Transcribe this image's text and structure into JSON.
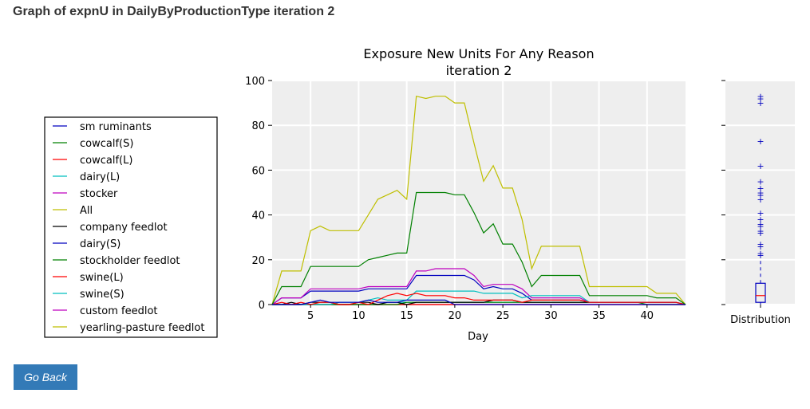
{
  "page": {
    "title": "Graph of expnU in DailyByProductionType iteration 2",
    "go_back_label": "Go Back"
  },
  "chart_data": {
    "type": "line",
    "title": "Exposure New Units For Any Reason",
    "subtitle": "iteration 2",
    "xlabel": "Day",
    "ylabel": "",
    "xlim": [
      1,
      44
    ],
    "ylim": [
      0,
      100
    ],
    "xticks": [
      5,
      10,
      15,
      20,
      25,
      30,
      35,
      40
    ],
    "yticks": [
      0,
      20,
      40,
      60,
      80,
      100
    ],
    "grid": true,
    "legend_position": "left",
    "x": [
      1,
      2,
      3,
      4,
      5,
      6,
      7,
      8,
      9,
      10,
      11,
      12,
      13,
      14,
      15,
      16,
      17,
      18,
      19,
      20,
      21,
      22,
      23,
      24,
      25,
      26,
      27,
      28,
      29,
      30,
      31,
      32,
      33,
      34,
      35,
      36,
      37,
      38,
      39,
      40,
      41,
      42,
      43,
      44
    ],
    "series": [
      {
        "name": "sm ruminants",
        "color": "#0000bf",
        "values": [
          0,
          0,
          0,
          0,
          1,
          2,
          1,
          1,
          1,
          1,
          2,
          1,
          1,
          1,
          2,
          2,
          2,
          2,
          2,
          0,
          0,
          0,
          0,
          0,
          0,
          0,
          0,
          0,
          0,
          0,
          0,
          0,
          0,
          0,
          0,
          0,
          0,
          0,
          0,
          0,
          0,
          0,
          0,
          0
        ]
      },
      {
        "name": "cowcalf(S)",
        "color": "#008000",
        "values": [
          0,
          8,
          8,
          8,
          17,
          17,
          17,
          17,
          17,
          17,
          20,
          21,
          22,
          23,
          23,
          50,
          50,
          50,
          50,
          49,
          49,
          41,
          32,
          36,
          27,
          27,
          19,
          8,
          13,
          13,
          13,
          13,
          13,
          4,
          4,
          4,
          4,
          4,
          4,
          4,
          3,
          3,
          3,
          0
        ]
      },
      {
        "name": "cowcalf(L)",
        "color": "#ff0000",
        "values": [
          0,
          1,
          0,
          1,
          0,
          1,
          1,
          0,
          0,
          1,
          0,
          2,
          4,
          5,
          4,
          5,
          4,
          4,
          4,
          3,
          3,
          2,
          2,
          2,
          2,
          2,
          1,
          2,
          2,
          2,
          2,
          2,
          2,
          1,
          1,
          1,
          1,
          1,
          1,
          1,
          1,
          1,
          1,
          0
        ]
      },
      {
        "name": "dairy(L)",
        "color": "#00bfbf",
        "values": [
          0,
          0,
          0,
          0,
          0,
          0,
          0,
          1,
          1,
          1,
          2,
          3,
          2,
          2,
          2,
          6,
          6,
          6,
          6,
          6,
          6,
          6,
          5,
          5,
          5,
          5,
          3,
          4,
          4,
          4,
          4,
          4,
          4,
          1,
          1,
          1,
          1,
          1,
          1,
          1,
          1,
          1,
          1,
          0
        ]
      },
      {
        "name": "stocker",
        "color": "#bf00bf",
        "values": [
          0,
          3,
          3,
          3,
          7,
          7,
          7,
          7,
          7,
          7,
          8,
          8,
          8,
          8,
          8,
          15,
          15,
          16,
          16,
          16,
          16,
          13,
          8,
          9,
          9,
          9,
          7,
          3,
          3,
          3,
          3,
          3,
          3,
          1,
          1,
          1,
          1,
          1,
          1,
          1,
          1,
          1,
          1,
          0
        ]
      },
      {
        "name": "All",
        "color": "#bfbf00",
        "values": [
          0,
          15,
          15,
          15,
          33,
          35,
          33,
          33,
          33,
          33,
          40,
          47,
          49,
          51,
          47,
          93,
          92,
          93,
          93,
          90,
          90,
          72,
          55,
          62,
          52,
          52,
          38,
          16,
          26,
          26,
          26,
          26,
          26,
          8,
          8,
          8,
          8,
          8,
          8,
          8,
          5,
          5,
          5,
          0
        ]
      },
      {
        "name": "company feedlot",
        "color": "#000000",
        "values": [
          0,
          0,
          1,
          0,
          1,
          1,
          1,
          0,
          0,
          1,
          1,
          0,
          1,
          1,
          0,
          1,
          1,
          1,
          1,
          1,
          1,
          1,
          1,
          2,
          2,
          2,
          1,
          1,
          1,
          1,
          1,
          1,
          1,
          1,
          1,
          1,
          1,
          1,
          1,
          1,
          1,
          1,
          1,
          0
        ]
      },
      {
        "name": "dairy(S)",
        "color": "#0000bf",
        "values": [
          0,
          3,
          3,
          3,
          6,
          6,
          6,
          6,
          6,
          6,
          7,
          7,
          7,
          7,
          7,
          13,
          13,
          13,
          13,
          13,
          13,
          11,
          7,
          8,
          7,
          7,
          5,
          2,
          2,
          2,
          2,
          2,
          2,
          1,
          1,
          1,
          1,
          1,
          1,
          1,
          1,
          1,
          1,
          0
        ]
      },
      {
        "name": "stockholder feedlot",
        "color": "#008000",
        "values": [
          0,
          0,
          0,
          0,
          0,
          0,
          0,
          0,
          0,
          0,
          0,
          0,
          0,
          0,
          1,
          1,
          1,
          1,
          1,
          1,
          1,
          1,
          1,
          1,
          1,
          1,
          1,
          1,
          1,
          1,
          1,
          1,
          1,
          1,
          1,
          1,
          1,
          1,
          1,
          0,
          0,
          0,
          0,
          0
        ]
      },
      {
        "name": "swine(L)",
        "color": "#ff0000",
        "values": [
          0,
          0,
          0,
          0,
          0,
          0,
          0,
          0,
          0,
          0,
          0,
          0,
          0,
          0,
          0,
          0,
          0,
          0,
          0,
          0,
          0,
          0,
          0,
          0,
          0,
          0,
          0,
          0,
          0,
          0,
          0,
          0,
          0,
          0,
          0,
          0,
          0,
          0,
          0,
          0,
          0,
          0,
          0,
          0
        ]
      },
      {
        "name": "swine(S)",
        "color": "#00bfbf",
        "values": [
          0,
          0,
          0,
          0,
          0,
          0,
          0,
          0,
          0,
          0,
          0,
          0,
          1,
          1,
          1,
          1,
          1,
          1,
          1,
          1,
          1,
          1,
          1,
          1,
          1,
          1,
          1,
          1,
          1,
          1,
          1,
          1,
          1,
          1,
          1,
          1,
          1,
          1,
          1,
          1,
          1,
          1,
          1,
          0
        ]
      },
      {
        "name": "custom feedlot",
        "color": "#bf00bf",
        "values": [
          0,
          0,
          0,
          0,
          0,
          0,
          0,
          0,
          0,
          0,
          0,
          0,
          0,
          0,
          0,
          0,
          0,
          0,
          0,
          0,
          0,
          0,
          0,
          0,
          0,
          0,
          0,
          0,
          0,
          0,
          0,
          0,
          0,
          0,
          0,
          0,
          0,
          0,
          0,
          0,
          0,
          0,
          0,
          0
        ]
      },
      {
        "name": "yearling-pasture feedlot",
        "color": "#bfbf00",
        "values": [
          0,
          0,
          0,
          0,
          0,
          0,
          0,
          0,
          0,
          0,
          0,
          0,
          0,
          0,
          0,
          0,
          0,
          0,
          0,
          0,
          0,
          0,
          0,
          0,
          0,
          0,
          0,
          0,
          0,
          0,
          0,
          0,
          0,
          0,
          0,
          0,
          0,
          0,
          0,
          0,
          0,
          0,
          0,
          0
        ]
      }
    ],
    "distribution": {
      "label": "Distribution",
      "box": {
        "q1": 1,
        "median": 4,
        "q3": 9.5,
        "whisker_low": 0,
        "whisker_high": 21
      },
      "outliers": [
        93,
        92,
        90,
        73,
        62,
        55,
        52,
        50,
        49,
        47,
        41,
        38,
        36,
        35,
        33,
        32,
        27,
        26,
        23,
        22
      ]
    }
  }
}
